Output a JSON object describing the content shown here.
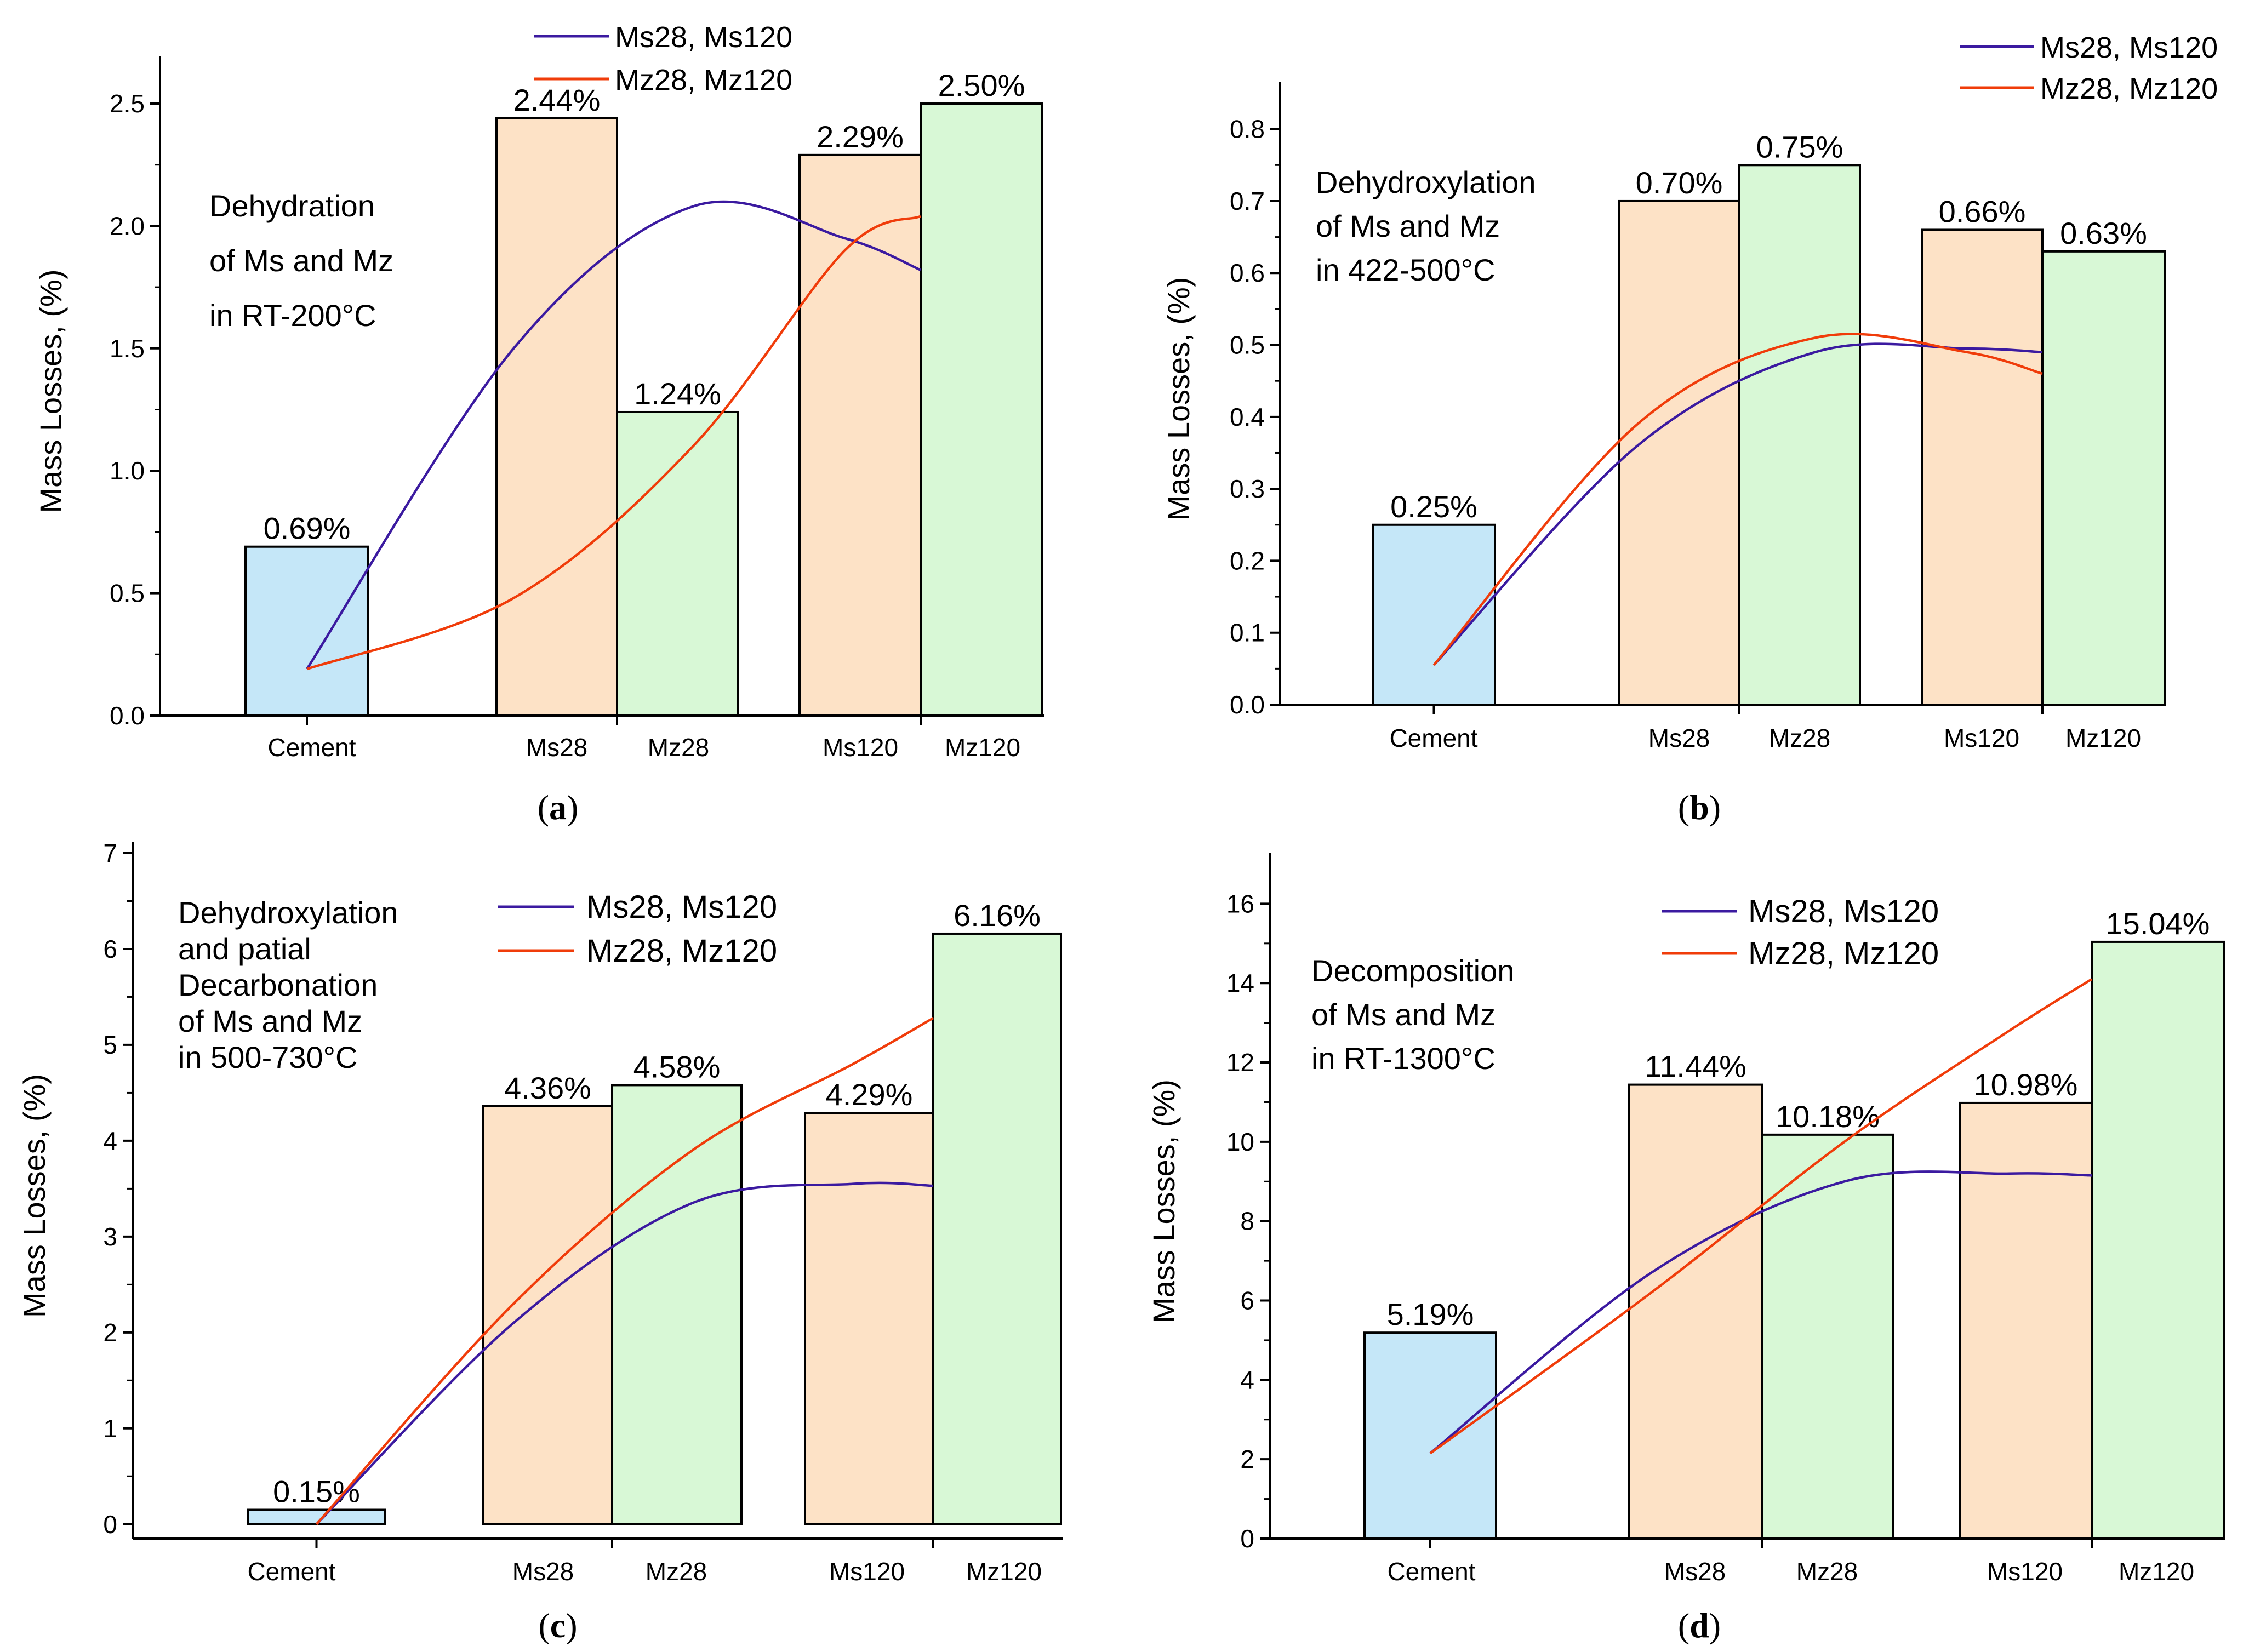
{
  "chart_data": [
    {
      "panel": "(a)",
      "panel_letter": "a",
      "type": "bar",
      "ylabel": "Mass Losses, (%)",
      "ylim": [
        0,
        2.65
      ],
      "yticks": [
        0.0,
        0.5,
        1.0,
        1.5,
        2.0,
        2.5
      ],
      "ytick_labels": [
        "0.0",
        "0.5",
        "1.0",
        "1.5",
        "2.0",
        "2.5"
      ],
      "title_lines": [
        "Dehydration",
        "of Ms and Mz",
        "in RT-200°C"
      ],
      "legend_position": "top-center",
      "bars": [
        {
          "category": "Cement",
          "value": 0.69,
          "label": "0.69%",
          "color": "#c5e7f8"
        },
        {
          "category": "Ms28",
          "value": 2.44,
          "label": "2.44%",
          "color": "#fde2c6"
        },
        {
          "category": "Mz28",
          "value": 1.24,
          "label": "1.24%",
          "color": "#d8f8d6"
        },
        {
          "category": "Ms120",
          "value": 2.29,
          "label": "2.29%",
          "color": "#fde2c6"
        },
        {
          "category": "Mz120",
          "value": 2.5,
          "label": "2.50%",
          "color": "#d8f8d6"
        }
      ],
      "series": [
        {
          "name": "Ms28, Ms120",
          "color": "#3b1aa0",
          "points": [
            [
              0,
              0.19
            ],
            [
              1,
              1.5
            ],
            [
              2,
              2.08
            ],
            [
              3,
              1.95
            ],
            [
              3.5,
              1.82
            ]
          ]
        },
        {
          "name": "Mz28, Mz120",
          "color": "#f03c0a",
          "points": [
            [
              0,
              0.19
            ],
            [
              1,
              0.48
            ],
            [
              2,
              1.1
            ],
            [
              3,
              1.9
            ],
            [
              3.5,
              2.04
            ]
          ]
        }
      ]
    },
    {
      "panel": "(b)",
      "panel_letter": "b",
      "type": "bar",
      "ylabel": "Mass Losses, (%)",
      "ylim": [
        0,
        0.85
      ],
      "yticks": [
        0.0,
        0.1,
        0.2,
        0.3,
        0.4,
        0.5,
        0.6,
        0.7,
        0.8
      ],
      "ytick_labels": [
        "0.0",
        "0.1",
        "0.2",
        "0.3",
        "0.4",
        "0.5",
        "0.6",
        "0.7",
        "0.8"
      ],
      "title_lines": [
        "Dehydroxylation",
        "of Ms and Mz",
        "in 422-500°C"
      ],
      "legend_position": "top-right",
      "bars": [
        {
          "category": "Cement",
          "value": 0.25,
          "label": "0.25%",
          "color": "#c5e7f8"
        },
        {
          "category": "Ms28",
          "value": 0.7,
          "label": "0.70%",
          "color": "#fde2c6"
        },
        {
          "category": "Mz28",
          "value": 0.75,
          "label": "0.75%",
          "color": "#d8f8d6"
        },
        {
          "category": "Ms120",
          "value": 0.66,
          "label": "0.66%",
          "color": "#fde2c6"
        },
        {
          "category": "Mz120",
          "value": 0.63,
          "label": "0.63%",
          "color": "#d8f8d6"
        }
      ],
      "series": [
        {
          "name": "Ms28, Ms120",
          "color": "#3b1aa0",
          "points": [
            [
              0,
              0.055
            ],
            [
              1,
              0.36
            ],
            [
              2,
              0.49
            ],
            [
              3,
              0.495
            ],
            [
              3.5,
              0.49
            ]
          ]
        },
        {
          "name": "Mz28, Mz120",
          "color": "#f03c0a",
          "points": [
            [
              0,
              0.055
            ],
            [
              1,
              0.39
            ],
            [
              2,
              0.51
            ],
            [
              3,
              0.49
            ],
            [
              3.5,
              0.46
            ]
          ]
        }
      ]
    },
    {
      "panel": "(c)",
      "panel_letter": "c",
      "type": "bar",
      "ylabel": "Mass Losses, (%)",
      "ylim": [
        -0.15,
        7.0
      ],
      "yticks": [
        0,
        1,
        2,
        3,
        4,
        5,
        6,
        7
      ],
      "ytick_labels": [
        "0",
        "1",
        "2",
        "3",
        "4",
        "5",
        "6",
        "7"
      ],
      "title_lines": [
        "Dehydroxylation",
        "and patial",
        "Decarbonation",
        "of Ms and Mz",
        "in 500-730°C"
      ],
      "legend_position": "top-center",
      "bars": [
        {
          "category": "Cement",
          "value": 0.15,
          "label": "0.15%",
          "color": "#c5e7f8"
        },
        {
          "category": "Ms28",
          "value": 4.36,
          "label": "4.36%",
          "color": "#fde2c6"
        },
        {
          "category": "Mz28",
          "value": 4.58,
          "label": "4.58%",
          "color": "#d8f8d6"
        },
        {
          "category": "Ms120",
          "value": 4.29,
          "label": "4.29%",
          "color": "#fde2c6"
        },
        {
          "category": "Mz120",
          "value": 6.16,
          "label": "6.16%",
          "color": "#d8f8d6"
        }
      ],
      "series": [
        {
          "name": "Ms28, Ms120",
          "color": "#3b1aa0",
          "points": [
            [
              0,
              0.0
            ],
            [
              1,
              2.1
            ],
            [
              2,
              3.35
            ],
            [
              3,
              3.55
            ],
            [
              3.5,
              3.53
            ]
          ]
        },
        {
          "name": "Mz28, Mz120",
          "color": "#f03c0a",
          "points": [
            [
              0,
              0.0
            ],
            [
              1,
              2.3
            ],
            [
              2,
              3.9
            ],
            [
              3,
              4.8
            ],
            [
              3.5,
              5.28
            ]
          ]
        }
      ]
    },
    {
      "panel": "(d)",
      "panel_letter": "d",
      "type": "bar",
      "ylabel": "Mass Losses, (%)",
      "ylim": [
        0,
        17
      ],
      "yticks": [
        0,
        2,
        4,
        6,
        8,
        10,
        12,
        14,
        16
      ],
      "ytick_labels": [
        "0",
        "2",
        "4",
        "6",
        "8",
        "10",
        "12",
        "14",
        "16"
      ],
      "title_lines": [
        "Decomposition",
        "of Ms and Mz",
        "in RT-1300°C"
      ],
      "legend_position": "top-center",
      "bars": [
        {
          "category": "Cement",
          "value": 5.19,
          "label": "5.19%",
          "color": "#c5e7f8"
        },
        {
          "category": "Ms28",
          "value": 11.44,
          "label": "11.44%",
          "color": "#fde2c6"
        },
        {
          "category": "Mz28",
          "value": 10.18,
          "label": "10.18%",
          "color": "#d8f8d6"
        },
        {
          "category": "Ms120",
          "value": 10.98,
          "label": "10.98%",
          "color": "#fde2c6"
        },
        {
          "category": "Mz120",
          "value": 15.04,
          "label": "15.04%",
          "color": "#d8f8d6"
        }
      ],
      "series": [
        {
          "name": "Ms28, Ms120",
          "color": "#3b1aa0",
          "points": [
            [
              0,
              2.15
            ],
            [
              1,
              6.7
            ],
            [
              2,
              9.0
            ],
            [
              3,
              9.2
            ],
            [
              3.5,
              9.15
            ]
          ]
        },
        {
          "name": "Mz28, Mz120",
          "color": "#f03c0a",
          "points": [
            [
              0,
              2.15
            ],
            [
              1,
              6.2
            ],
            [
              2,
              10.0
            ],
            [
              3,
              12.8
            ],
            [
              3.5,
              14.1
            ]
          ]
        }
      ]
    }
  ]
}
